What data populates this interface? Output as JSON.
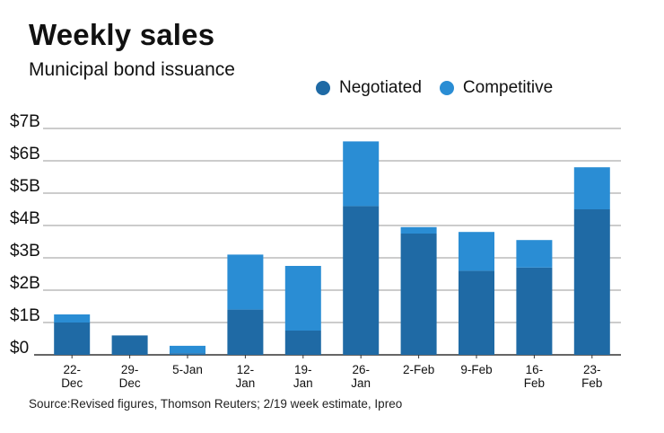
{
  "chart_data": {
    "type": "bar",
    "stacked": true,
    "title": "Weekly sales",
    "subtitle": "Municipal bond issuance",
    "categories": [
      "22-\nDec",
      "29-\nDec",
      "5-Jan",
      "12-\nJan",
      "19-\nJan",
      "26-\nJan",
      "2-Feb",
      "9-Feb",
      "16-\nFeb",
      "23-\nFeb"
    ],
    "series": [
      {
        "name": "Negotiated",
        "values": [
          1.0,
          0.6,
          0.05,
          1.4,
          0.75,
          4.6,
          3.75,
          2.6,
          2.7,
          4.5
        ]
      },
      {
        "name": "Competitive",
        "values": [
          0.25,
          0.0,
          0.23,
          1.7,
          2.0,
          2.0,
          0.2,
          1.2,
          0.85,
          1.3
        ]
      }
    ],
    "ylim": [
      0,
      7
    ],
    "yticks": [
      "$0",
      "$1B",
      "$2B",
      "$3B",
      "$4B",
      "$5B",
      "$6B",
      "$7B"
    ],
    "xlabel": "",
    "ylabel": "",
    "legend": "top-right",
    "grid": true
  },
  "colors": {
    "negotiated": "#1f6aa5",
    "competitive": "#2a8dd4",
    "grid": "#9a9a9a",
    "axis": "#333333"
  },
  "source": "Source:Revised figures, Thomson Reuters; 2/19 week estimate, Ipreo"
}
